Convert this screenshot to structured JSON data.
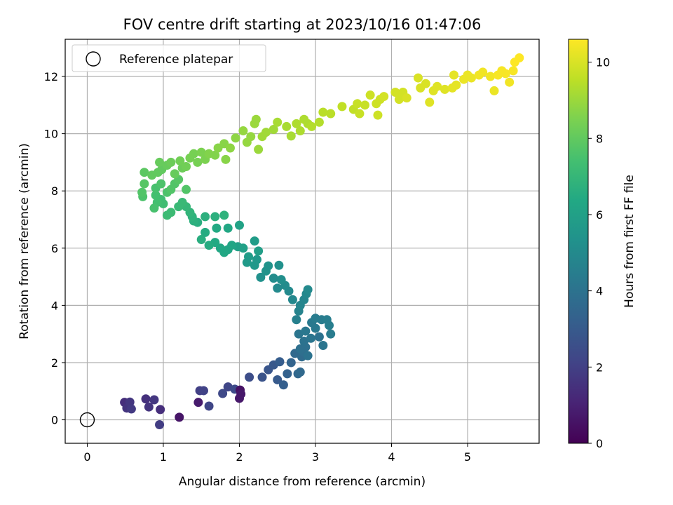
{
  "chart_data": {
    "type": "scatter",
    "title": "FOV centre drift starting at 2023/10/16 01:47:06",
    "xlabel": "Angular distance from reference (arcmin)",
    "ylabel": "Rotation from reference (arcmin)",
    "xlim": [
      -0.29,
      5.94
    ],
    "ylim": [
      -0.82,
      13.3
    ],
    "xticks": [
      0,
      1,
      2,
      3,
      4,
      5
    ],
    "yticks": [
      0,
      2,
      4,
      6,
      8,
      10,
      12
    ],
    "grid": true,
    "legend": {
      "position": "top-left",
      "entries": [
        "Reference platepar"
      ]
    },
    "reference_point": {
      "x": 0,
      "y": 0
    },
    "colorbar": {
      "label": "Hours from first FF file",
      "min": 0,
      "max": 10.6,
      "ticks": [
        0,
        2,
        4,
        6,
        8,
        10
      ],
      "colormap": "viridis"
    },
    "points": [
      [
        0.49,
        0.61,
        1.4
      ],
      [
        0.52,
        0.41,
        1.6
      ],
      [
        0.56,
        0.62,
        1.7
      ],
      [
        0.58,
        0.38,
        1.8
      ],
      [
        0.77,
        0.73,
        1.5
      ],
      [
        0.81,
        0.45,
        1.6
      ],
      [
        0.88,
        0.7,
        1.7
      ],
      [
        0.96,
        0.36,
        1.4
      ],
      [
        0.95,
        -0.17,
        1.9
      ],
      [
        1.21,
        0.09,
        0.6
      ],
      [
        1.46,
        0.61,
        0.8
      ],
      [
        1.48,
        1.02,
        2.0
      ],
      [
        1.53,
        1.02,
        2.1
      ],
      [
        1.6,
        0.48,
        2.2
      ],
      [
        1.78,
        0.92,
        2.3
      ],
      [
        1.85,
        1.15,
        2.2
      ],
      [
        1.94,
        1.07,
        2.4
      ],
      [
        2.0,
        0.75,
        0.7
      ],
      [
        2.01,
        1.04,
        0.5
      ],
      [
        2.02,
        0.9,
        0.7
      ],
      [
        2.13,
        1.49,
        2.5
      ],
      [
        2.3,
        1.49,
        2.7
      ],
      [
        2.38,
        1.75,
        2.8
      ],
      [
        2.45,
        1.92,
        2.9
      ],
      [
        2.5,
        1.4,
        3.0
      ],
      [
        2.53,
        2.03,
        3.1
      ],
      [
        2.58,
        1.22,
        3.2
      ],
      [
        2.63,
        1.61,
        3.3
      ],
      [
        2.68,
        2.0,
        3.4
      ],
      [
        2.73,
        2.32,
        3.6
      ],
      [
        2.77,
        1.61,
        3.5
      ],
      [
        2.8,
        1.67,
        3.6
      ],
      [
        2.82,
        2.2,
        3.7
      ],
      [
        2.84,
        2.38,
        3.8
      ],
      [
        2.87,
        2.54,
        3.9
      ],
      [
        2.9,
        2.24,
        4.0
      ],
      [
        2.8,
        2.48,
        3.9
      ],
      [
        2.85,
        2.75,
        4.0
      ],
      [
        2.78,
        3.0,
        4.1
      ],
      [
        2.87,
        3.1,
        4.2
      ],
      [
        2.94,
        2.85,
        4.1
      ],
      [
        3.0,
        3.2,
        4.3
      ],
      [
        3.05,
        2.9,
        4.0
      ],
      [
        3.1,
        2.6,
        4.1
      ],
      [
        2.95,
        3.4,
        4.3
      ],
      [
        3.0,
        3.55,
        4.4
      ],
      [
        3.08,
        3.5,
        4.4
      ],
      [
        3.15,
        3.5,
        4.5
      ],
      [
        3.18,
        3.3,
        4.5
      ],
      [
        3.2,
        3.0,
        4.4
      ],
      [
        2.75,
        3.5,
        4.6
      ],
      [
        2.78,
        3.8,
        4.7
      ],
      [
        2.8,
        4.0,
        4.8
      ],
      [
        2.85,
        4.2,
        4.8
      ],
      [
        2.88,
        4.4,
        4.9
      ],
      [
        2.9,
        4.55,
        5.0
      ],
      [
        2.7,
        4.2,
        4.9
      ],
      [
        2.65,
        4.5,
        5.0
      ],
      [
        2.6,
        4.7,
        5.1
      ],
      [
        2.55,
        4.9,
        5.2
      ],
      [
        2.5,
        4.6,
        5.0
      ],
      [
        2.45,
        4.95,
        5.1
      ],
      [
        2.52,
        5.4,
        5.3
      ],
      [
        2.35,
        5.2,
        5.4
      ],
      [
        2.28,
        4.98,
        5.3
      ],
      [
        2.38,
        5.38,
        5.4
      ],
      [
        2.2,
        5.4,
        5.6
      ],
      [
        2.23,
        5.6,
        5.6
      ],
      [
        2.12,
        5.7,
        5.8
      ],
      [
        2.1,
        5.5,
        5.7
      ],
      [
        2.25,
        5.9,
        5.9
      ],
      [
        2.2,
        6.25,
        5.8
      ],
      [
        2.05,
        6.0,
        6.0
      ],
      [
        1.98,
        6.05,
        6.0
      ],
      [
        1.85,
        5.95,
        6.2
      ],
      [
        1.8,
        5.85,
        6.3
      ],
      [
        1.75,
        6.0,
        6.3
      ],
      [
        1.9,
        6.1,
        6.2
      ],
      [
        2.0,
        6.8,
        6.1
      ],
      [
        1.85,
        6.7,
        6.3
      ],
      [
        1.7,
        6.7,
        6.4
      ],
      [
        1.68,
        6.2,
        6.4
      ],
      [
        1.6,
        6.1,
        6.5
      ],
      [
        1.55,
        6.55,
        6.5
      ],
      [
        1.5,
        6.3,
        6.6
      ],
      [
        1.45,
        6.9,
        6.6
      ],
      [
        1.4,
        6.95,
        6.7
      ],
      [
        1.38,
        7.1,
        6.8
      ],
      [
        1.55,
        7.1,
        6.7
      ],
      [
        1.68,
        7.1,
        6.7
      ],
      [
        1.8,
        7.15,
        6.8
      ],
      [
        1.35,
        7.25,
        6.9
      ],
      [
        1.3,
        7.45,
        7.0
      ],
      [
        1.25,
        7.6,
        7.1
      ],
      [
        1.2,
        7.45,
        7.1
      ],
      [
        1.1,
        7.25,
        7.2
      ],
      [
        1.05,
        7.15,
        7.2
      ],
      [
        1.0,
        7.55,
        7.3
      ],
      [
        0.97,
        7.7,
        7.3
      ],
      [
        0.92,
        7.6,
        7.4
      ],
      [
        0.9,
        7.85,
        7.4
      ],
      [
        0.88,
        7.4,
        7.5
      ],
      [
        0.9,
        8.1,
        7.5
      ],
      [
        0.97,
        8.25,
        7.6
      ],
      [
        1.05,
        7.95,
        7.6
      ],
      [
        1.1,
        8.05,
        7.7
      ],
      [
        1.15,
        8.25,
        7.7
      ],
      [
        1.3,
        8.05,
        7.7
      ],
      [
        1.2,
        8.4,
        7.8
      ],
      [
        0.73,
        7.8,
        7.6
      ],
      [
        0.72,
        7.95,
        7.7
      ],
      [
        0.75,
        8.25,
        7.8
      ],
      [
        0.75,
        8.65,
        7.9
      ],
      [
        0.85,
        8.55,
        8.0
      ],
      [
        0.93,
        8.65,
        8.0
      ],
      [
        0.98,
        8.75,
        8.0
      ],
      [
        0.95,
        9.0,
        8.1
      ],
      [
        1.05,
        8.9,
        8.1
      ],
      [
        1.1,
        9.0,
        8.2
      ],
      [
        1.15,
        8.6,
        8.1
      ],
      [
        1.25,
        8.8,
        8.2
      ],
      [
        1.22,
        9.05,
        8.3
      ],
      [
        1.3,
        8.85,
        8.3
      ],
      [
        1.35,
        9.15,
        8.4
      ],
      [
        1.4,
        9.3,
        8.4
      ],
      [
        1.45,
        9.0,
        8.4
      ],
      [
        1.5,
        9.35,
        8.5
      ],
      [
        1.55,
        9.1,
        8.5
      ],
      [
        1.6,
        9.3,
        8.6
      ],
      [
        1.68,
        9.25,
        8.6
      ],
      [
        1.72,
        9.5,
        8.7
      ],
      [
        1.8,
        9.65,
        8.7
      ],
      [
        1.82,
        9.1,
        8.7
      ],
      [
        1.88,
        9.5,
        8.8
      ],
      [
        1.95,
        9.85,
        8.8
      ],
      [
        2.05,
        10.1,
        8.9
      ],
      [
        2.1,
        9.7,
        8.9
      ],
      [
        2.15,
        9.9,
        8.9
      ],
      [
        2.2,
        10.35,
        9.0
      ],
      [
        2.22,
        10.5,
        9.0
      ],
      [
        2.25,
        9.45,
        9.0
      ],
      [
        2.3,
        9.9,
        9.1
      ],
      [
        2.35,
        10.05,
        9.1
      ],
      [
        2.45,
        10.15,
        9.1
      ],
      [
        2.5,
        10.4,
        9.2
      ],
      [
        2.62,
        10.25,
        9.2
      ],
      [
        2.68,
        9.92,
        9.2
      ],
      [
        2.75,
        10.35,
        9.3
      ],
      [
        2.8,
        10.1,
        9.3
      ],
      [
        2.85,
        10.5,
        9.3
      ],
      [
        2.9,
        10.35,
        9.3
      ],
      [
        2.95,
        10.25,
        9.4
      ],
      [
        3.05,
        10.4,
        9.4
      ],
      [
        3.1,
        10.75,
        9.5
      ],
      [
        3.2,
        10.7,
        9.5
      ],
      [
        3.35,
        10.95,
        9.6
      ],
      [
        3.5,
        10.85,
        9.6
      ],
      [
        3.55,
        11.05,
        9.7
      ],
      [
        3.58,
        10.7,
        9.7
      ],
      [
        3.65,
        11.0,
        9.7
      ],
      [
        3.72,
        11.35,
        9.8
      ],
      [
        3.8,
        11.05,
        9.8
      ],
      [
        3.85,
        11.2,
        9.8
      ],
      [
        3.82,
        10.65,
        9.8
      ],
      [
        3.9,
        11.3,
        9.9
      ],
      [
        4.05,
        11.45,
        9.9
      ],
      [
        4.1,
        11.2,
        9.9
      ],
      [
        4.15,
        11.45,
        9.9
      ],
      [
        4.2,
        11.25,
        10.0
      ],
      [
        4.35,
        11.95,
        10.0
      ],
      [
        4.38,
        11.6,
        10.0
      ],
      [
        4.45,
        11.75,
        10.0
      ],
      [
        4.5,
        11.1,
        10.1
      ],
      [
        4.55,
        11.5,
        10.1
      ],
      [
        4.6,
        11.65,
        10.1
      ],
      [
        4.7,
        11.55,
        10.1
      ],
      [
        4.8,
        11.6,
        10.2
      ],
      [
        4.85,
        11.7,
        10.2
      ],
      [
        4.82,
        12.05,
        10.2
      ],
      [
        4.95,
        11.9,
        10.3
      ],
      [
        5.0,
        12.05,
        10.3
      ],
      [
        5.05,
        11.95,
        10.3
      ],
      [
        5.15,
        12.05,
        10.4
      ],
      [
        5.2,
        12.15,
        10.4
      ],
      [
        5.35,
        11.5,
        10.3
      ],
      [
        5.3,
        12.0,
        10.4
      ],
      [
        5.4,
        12.05,
        10.5
      ],
      [
        5.45,
        12.2,
        10.5
      ],
      [
        5.5,
        12.1,
        10.5
      ],
      [
        5.55,
        11.8,
        10.4
      ],
      [
        5.6,
        12.2,
        10.5
      ],
      [
        5.62,
        12.5,
        10.6
      ],
      [
        5.68,
        12.65,
        10.6
      ]
    ]
  }
}
